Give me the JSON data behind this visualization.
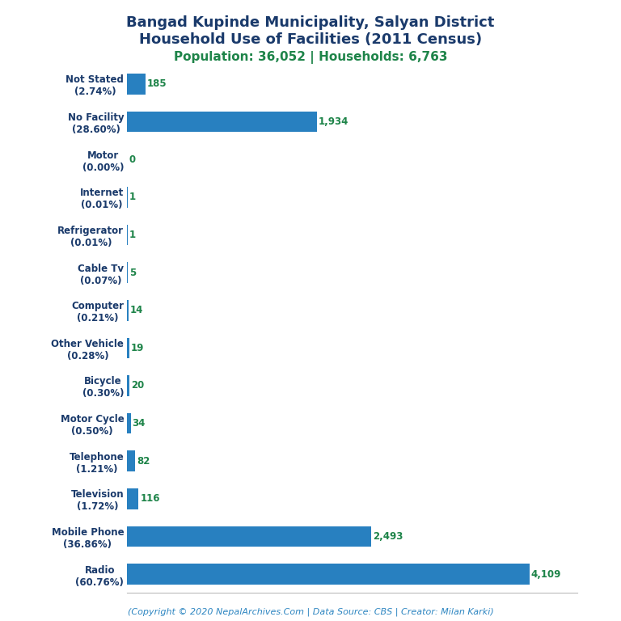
{
  "title_line1": "Bangad Kupinde Municipality, Salyan District",
  "title_line2": "Household Use of Facilities (2011 Census)",
  "subtitle": "Population: 36,052 | Households: 6,763",
  "footer": "(Copyright © 2020 NepalArchives.Com | Data Source: CBS | Creator: Milan Karki)",
  "categories": [
    "Not Stated\n(2.74%)",
    "No Facility\n(28.60%)",
    "Motor\n(0.00%)",
    "Internet\n(0.01%)",
    "Refrigerator\n(0.01%)",
    "Cable Tv\n(0.07%)",
    "Computer\n(0.21%)",
    "Other Vehicle\n(0.28%)",
    "Bicycle\n(0.30%)",
    "Motor Cycle\n(0.50%)",
    "Telephone\n(1.21%)",
    "Television\n(1.72%)",
    "Mobile Phone\n(36.86%)",
    "Radio\n(60.76%)"
  ],
  "values": [
    185,
    1934,
    0,
    1,
    1,
    5,
    14,
    19,
    20,
    34,
    82,
    116,
    2493,
    4109
  ],
  "bar_color": "#2880C0",
  "value_color": "#1E8449",
  "title_color": "#1A3A6B",
  "subtitle_color": "#1E8449",
  "footer_color": "#2E86C1",
  "background_color": "#FFFFFF",
  "xlim": [
    0,
    4600
  ],
  "value_fontsize": 8.5,
  "label_fontsize": 8.5,
  "title_fontsize": 13,
  "subtitle_fontsize": 11,
  "footer_fontsize": 8
}
